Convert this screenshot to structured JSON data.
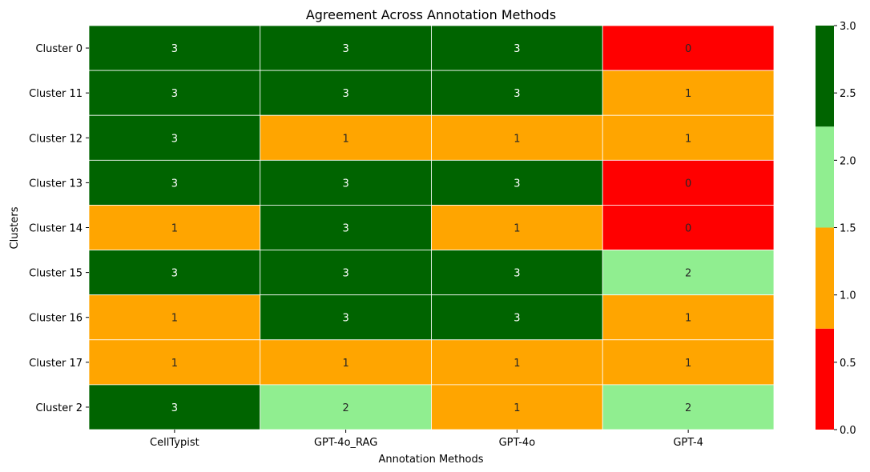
{
  "chart_data": {
    "type": "heatmap",
    "title": "Agreement Across Annotation Methods",
    "xlabel": "Annotation Methods",
    "ylabel": "Clusters",
    "x_categories": [
      "CellTypist",
      "GPT-4o_RAG",
      "GPT-4o",
      "GPT-4"
    ],
    "y_categories": [
      "Cluster 0",
      "Cluster 11",
      "Cluster 12",
      "Cluster 13",
      "Cluster 14",
      "Cluster 15",
      "Cluster 16",
      "Cluster 17",
      "Cluster 2"
    ],
    "values": [
      [
        3,
        3,
        3,
        0
      ],
      [
        3,
        3,
        3,
        1
      ],
      [
        3,
        1,
        1,
        1
      ],
      [
        3,
        3,
        3,
        0
      ],
      [
        1,
        3,
        1,
        0
      ],
      [
        3,
        3,
        3,
        2
      ],
      [
        1,
        3,
        3,
        1
      ],
      [
        1,
        1,
        1,
        1
      ],
      [
        3,
        2,
        1,
        2
      ]
    ],
    "value_range": [
      0,
      3
    ],
    "colormap": [
      "#ff0000",
      "#ffa500",
      "#90ee90",
      "#006400"
    ],
    "annotations": true,
    "colorbar": {
      "ticks": [
        "0.0",
        "0.5",
        "1.0",
        "1.5",
        "2.0",
        "2.5",
        "3.0"
      ],
      "tick_values": [
        0,
        0.5,
        1.0,
        1.5,
        2.0,
        2.5,
        3.0
      ]
    }
  }
}
